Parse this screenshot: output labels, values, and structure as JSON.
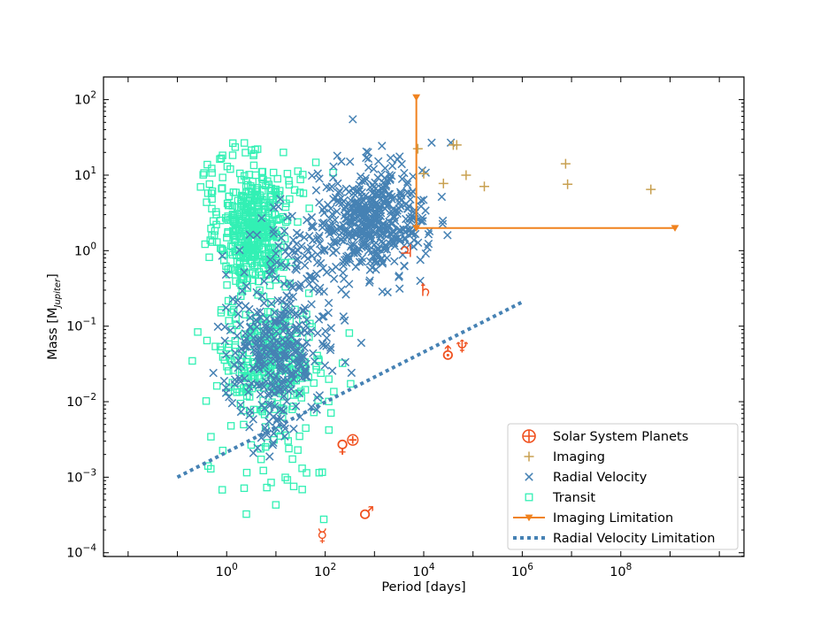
{
  "chart_data": {
    "type": "scatter",
    "title": "",
    "xlabel": "Period [days]",
    "ylabel_main": "Mass [M",
    "ylabel_sub": "Jupiter",
    "ylabel_close": "]",
    "xscale": "log",
    "yscale": "log",
    "xlim_log10": [
      -2.5,
      10.5
    ],
    "ylim_log10": [
      -4.05,
      2.3
    ],
    "xticks": [
      {
        "base": "10",
        "exp": "0",
        "log": 0
      },
      {
        "base": "10",
        "exp": "2",
        "log": 2
      },
      {
        "base": "10",
        "exp": "4",
        "log": 4
      },
      {
        "base": "10",
        "exp": "6",
        "log": 6
      },
      {
        "base": "10",
        "exp": "8",
        "log": 8
      }
    ],
    "yticks": [
      {
        "base": "10",
        "exp": "−4",
        "log": -4
      },
      {
        "base": "10",
        "exp": "−3",
        "log": -3
      },
      {
        "base": "10",
        "exp": "−2",
        "log": -2
      },
      {
        "base": "10",
        "exp": "−1",
        "log": -1
      },
      {
        "base": "10",
        "exp": "0",
        "log": 0
      },
      {
        "base": "10",
        "exp": "1",
        "log": 1
      },
      {
        "base": "10",
        "exp": "2",
        "log": 2
      }
    ],
    "grid": false,
    "legend_position": "lower-right",
    "colors": {
      "solar": "#f0501e",
      "imaging": "#c8a050",
      "rv": "#4682b4",
      "transit": "#32f0b4",
      "imaging_limit": "#f0821e",
      "rv_limit": "#4682b4"
    },
    "legend": [
      {
        "key": "solar",
        "label": "Solar System Planets"
      },
      {
        "key": "imaging",
        "label": "Imaging"
      },
      {
        "key": "rv",
        "label": "Radial Velocity"
      },
      {
        "key": "transit",
        "label": "Transit"
      },
      {
        "key": "imaging_limit",
        "label": "Imaging Limitation"
      },
      {
        "key": "rv_limit",
        "label": "Radial Velocity Limitation"
      }
    ],
    "solar_system": [
      {
        "name": "Mercury",
        "symbol": "☿",
        "period_log": 1.94,
        "mass_log": -3.77
      },
      {
        "name": "Venus",
        "symbol": "♀",
        "period_log": 2.35,
        "mass_log": -2.59
      },
      {
        "name": "Earth",
        "symbol": "⊕",
        "period_log": 2.56,
        "mass_log": -2.5
      },
      {
        "name": "Mars",
        "symbol": "♂",
        "period_log": 2.84,
        "mass_log": -3.47
      },
      {
        "name": "Jupiter",
        "symbol": "♃",
        "period_log": 3.64,
        "mass_log": 0.0
      },
      {
        "name": "Saturn",
        "symbol": "♄",
        "period_log": 4.03,
        "mass_log": -0.52
      },
      {
        "name": "Uranus",
        "symbol": "⛢",
        "period_log": 4.49,
        "mass_log": -1.36
      },
      {
        "name": "Neptune",
        "symbol": "♆",
        "period_log": 4.78,
        "mass_log": -1.27
      }
    ],
    "imaging_points": [
      {
        "period_log": 3.88,
        "mass_log": 1.35
      },
      {
        "period_log": 4.0,
        "mass_log": 1.02
      },
      {
        "period_log": 4.4,
        "mass_log": 0.89
      },
      {
        "period_log": 4.67,
        "mass_log": 1.4
      },
      {
        "period_log": 4.86,
        "mass_log": 1.0
      },
      {
        "period_log": 5.23,
        "mass_log": 0.85
      },
      {
        "period_log": 6.88,
        "mass_log": 1.15
      },
      {
        "period_log": 6.92,
        "mass_log": 0.88
      },
      {
        "period_log": 8.61,
        "mass_log": 0.81
      },
      {
        "period_log": 4.6,
        "mass_log": 1.4
      }
    ],
    "rv_points_sample": [
      {
        "period_log": 2.56,
        "mass_log": 1.74
      },
      {
        "period_log": 4.16,
        "mass_log": 1.43
      },
      {
        "period_log": 4.55,
        "mass_log": 1.43
      },
      {
        "period_log": 3.0,
        "mass_log": 0.4
      },
      {
        "period_log": 1.2,
        "mass_log": -1.6
      },
      {
        "period_log": 1.0,
        "mass_log": -2.35
      }
    ],
    "rv_point_count": 900,
    "transit_point_count": 800,
    "imaging_limitation": {
      "vertical": {
        "period_log": 3.85,
        "mass_log_from": 0.3,
        "mass_log_to": 2.03
      },
      "horizontal": {
        "mass_log": 0.3,
        "period_log_from": 3.85,
        "period_log_to": 9.1
      }
    },
    "rv_limitation": {
      "period_log_from": -1.0,
      "mass_log_from": -3.0,
      "period_log_to": 6.0,
      "mass_log_to": -0.68
    }
  }
}
